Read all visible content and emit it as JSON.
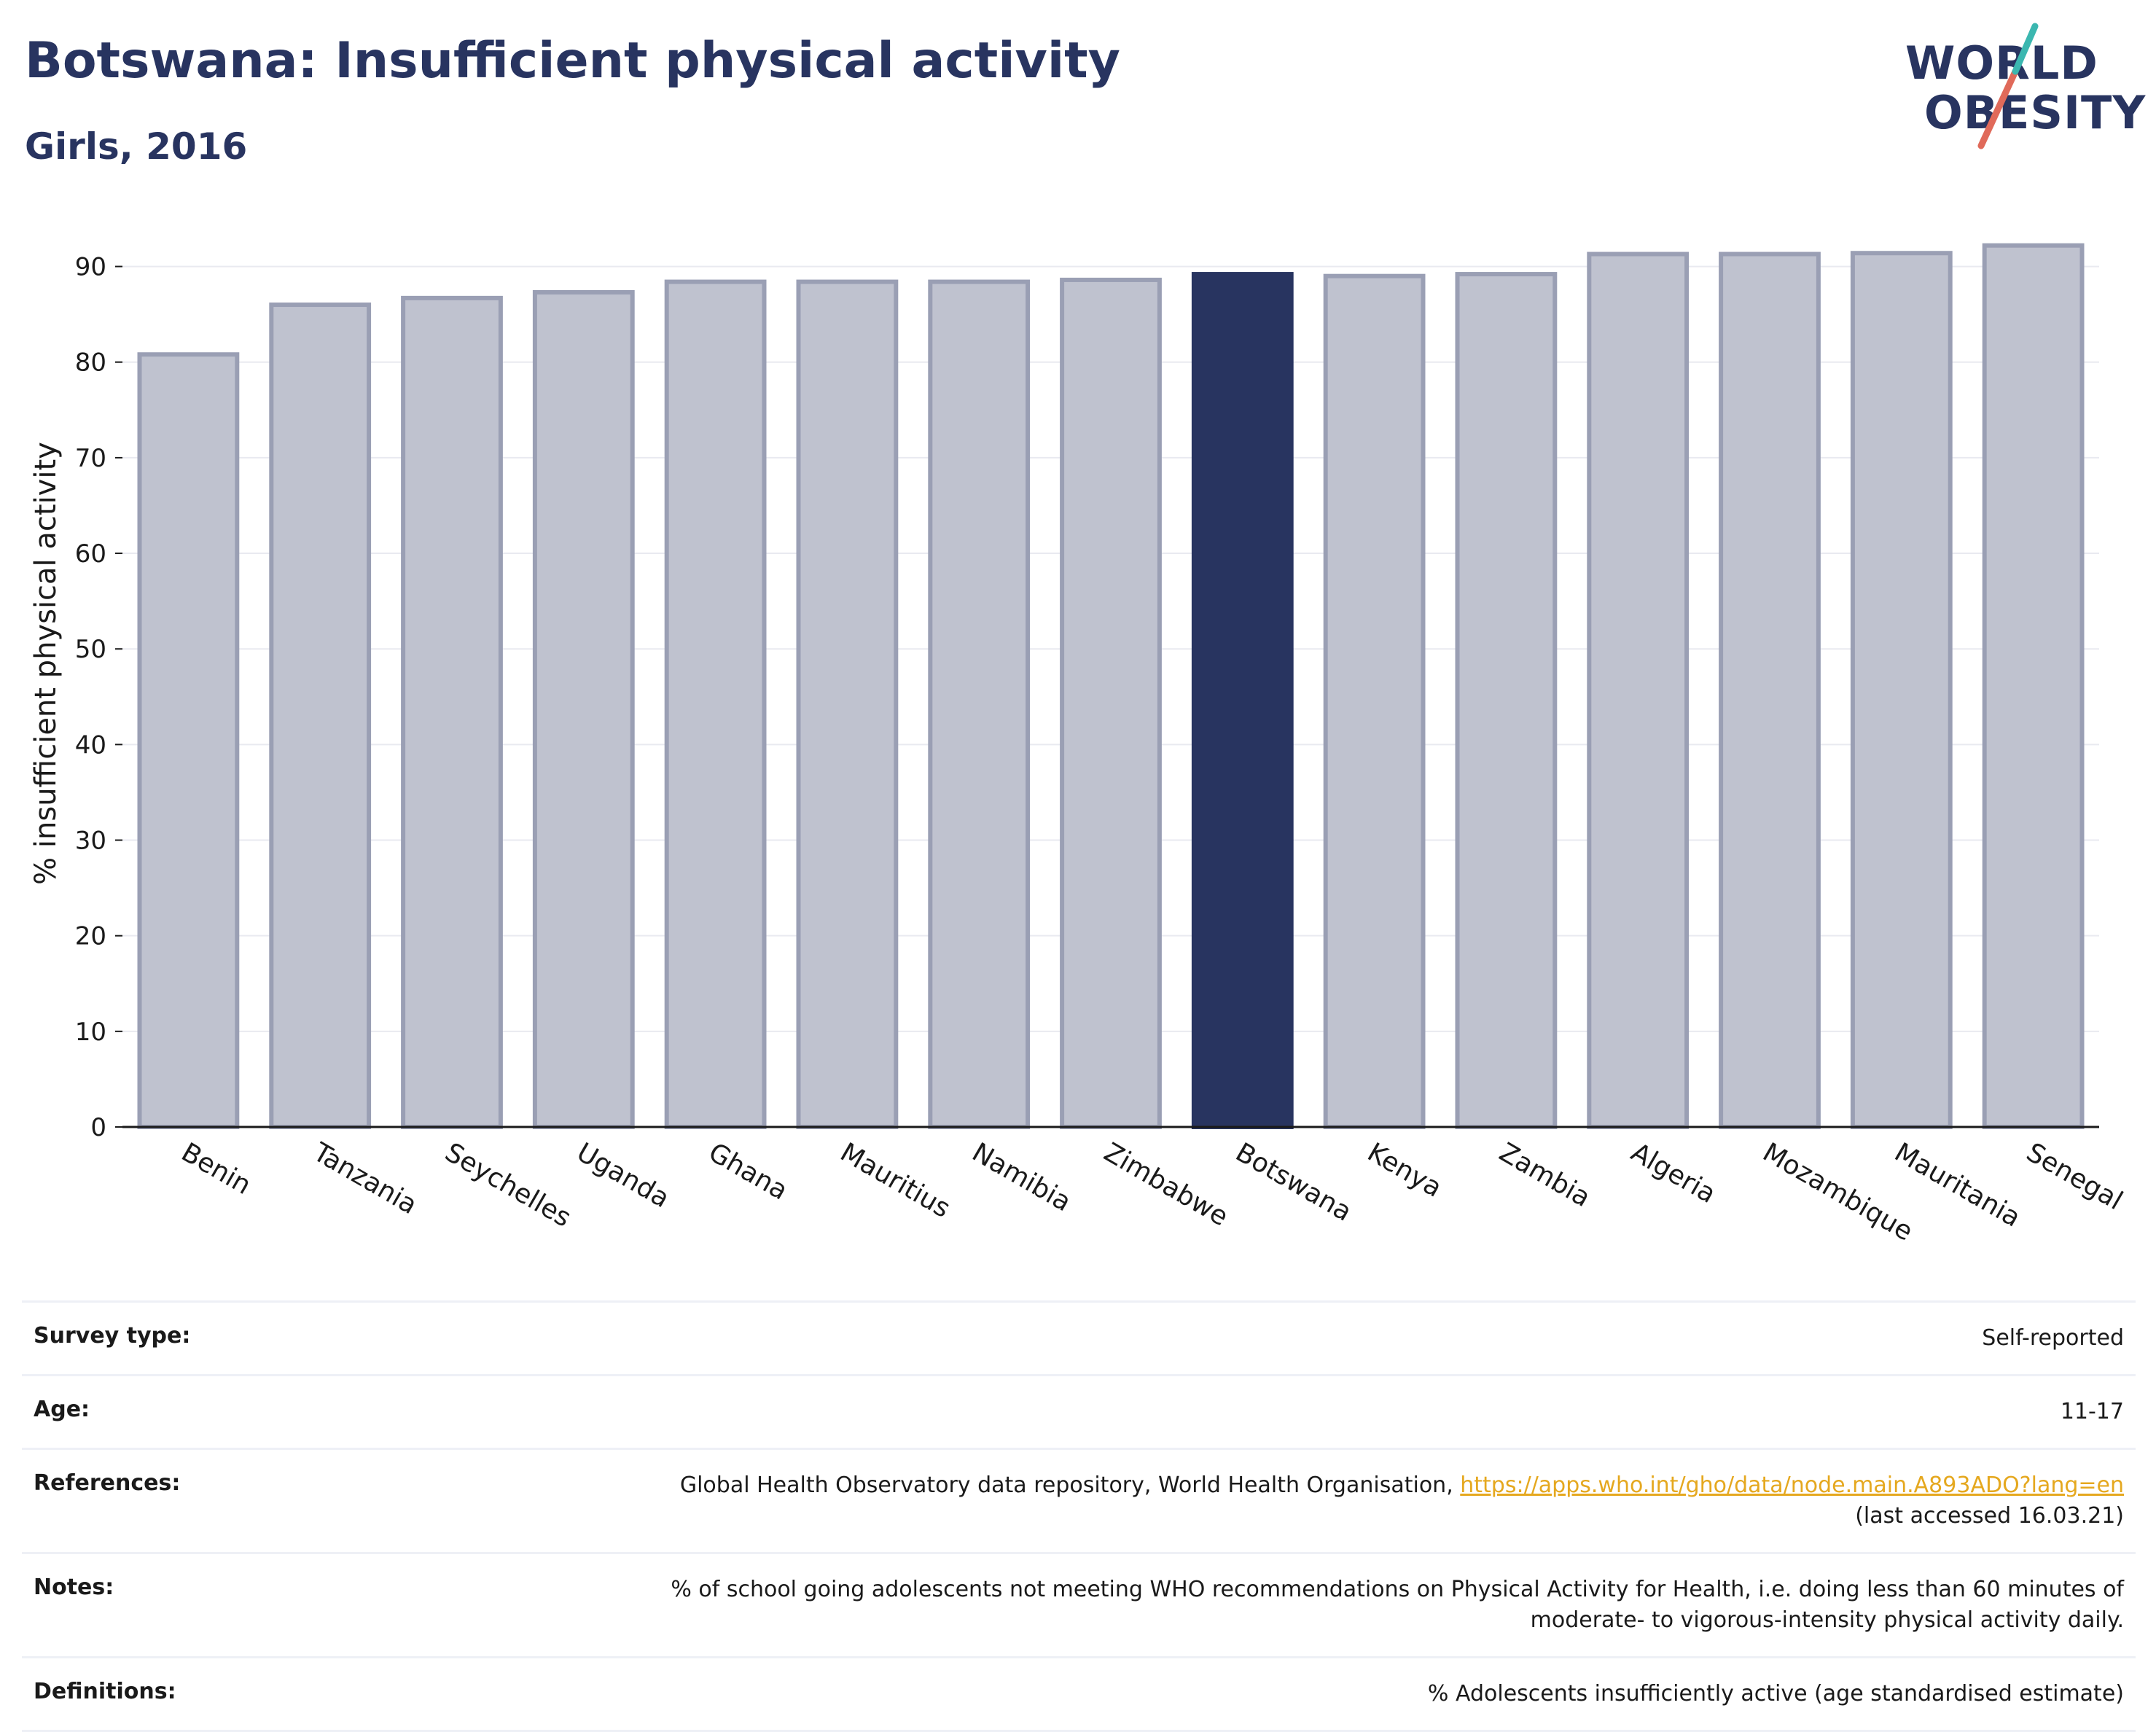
{
  "header": {
    "title": "Botswana: Insufficient physical activity",
    "subtitle": "Girls, 2016"
  },
  "logo": {
    "line1": "WORLD",
    "line2": "OBESITY"
  },
  "colors": {
    "highlight": "#283460",
    "bar_fill": "#bfc2cf",
    "bar_stroke": "#9a9fb4",
    "grid": "#e9eaf0"
  },
  "chart_data": {
    "type": "bar",
    "title": "Botswana: Insufficient physical activity",
    "subtitle": "Girls, 2016",
    "xlabel": "",
    "ylabel": "% insufficient physical activity",
    "categories": [
      "Benin",
      "Tanzania",
      "Seychelles",
      "Uganda",
      "Ghana",
      "Mauritius",
      "Namibia",
      "Zimbabwe",
      "Botswana",
      "Kenya",
      "Zambia",
      "Algeria",
      "Mozambique",
      "Mauritania",
      "Senegal"
    ],
    "values": [
      80.8,
      86.0,
      86.7,
      87.3,
      88.4,
      88.4,
      88.4,
      88.6,
      89.2,
      89.0,
      89.2,
      91.3,
      91.3,
      91.4,
      92.2
    ],
    "highlight": "Botswana",
    "ylim": [
      0,
      95
    ],
    "yticks": [
      0,
      10,
      20,
      30,
      40,
      50,
      60,
      70,
      80,
      90
    ],
    "grid": true
  },
  "meta": {
    "survey_label": "Survey type:",
    "survey_value": "Self-reported",
    "age_label": "Age:",
    "age_value": "11-17",
    "references_label": "References:",
    "references_text": "Global Health Observatory data repository, World Health Organisation, ",
    "references_link": "https://apps.who.int/gho/data/node.main.A893ADO?lang=en",
    "references_accessed": "(last accessed 16.03.21)",
    "notes_label": "Notes:",
    "notes_line1": "% of school going adolescents not meeting WHO recommendations on Physical Activity for Health, i.e. doing less than 60 minutes of",
    "notes_line2": "moderate- to vigorous-intensity physical activity daily.",
    "definitions_label": "Definitions:",
    "definitions_value": "% Adolescents insufficiently active (age standardised estimate)"
  }
}
